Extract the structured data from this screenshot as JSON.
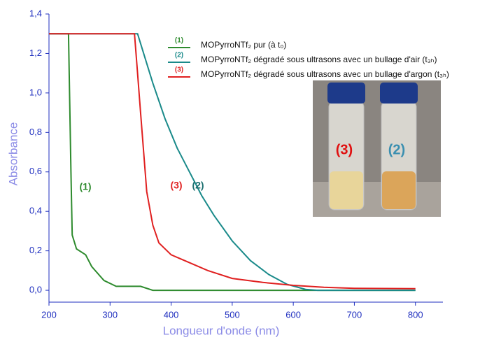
{
  "chart_data": {
    "type": "line",
    "x_label": "Longueur d'onde (nm)",
    "y_label": "Absorbance",
    "xlim": [
      200,
      845
    ],
    "ylim": [
      -0.06,
      1.4
    ],
    "xticks": [
      200,
      300,
      400,
      500,
      600,
      700,
      800
    ],
    "yticks": [
      {
        "value": 0,
        "label": "0,0"
      },
      {
        "value": 0.2,
        "label": "0,2"
      },
      {
        "value": 0.4,
        "label": "0,4"
      },
      {
        "value": 0.6,
        "label": "0,6"
      },
      {
        "value": 0.8,
        "label": "0,8"
      },
      {
        "value": 1.0,
        "label": "1,0"
      },
      {
        "value": 1.2,
        "label": "1,2"
      },
      {
        "value": 1.4,
        "label": "1,4"
      }
    ],
    "series": [
      {
        "tag": "(1)",
        "name": "MOPyrroNTf₂ pur (à t₀)",
        "color": "#2e8b2e",
        "x": [
          200,
          232,
          236,
          238,
          245,
          260,
          270,
          290,
          310,
          350,
          370,
          800
        ],
        "values": [
          1.3,
          1.3,
          0.6,
          0.28,
          0.21,
          0.18,
          0.12,
          0.05,
          0.02,
          0.02,
          0.0,
          0.0
        ]
      },
      {
        "tag": "(2)",
        "name": "MOPyrroNTf₂ dégradé sous  ultrasons avec un bullage d'air (t₃ₕ)",
        "color": "#1a8a8a",
        "x": [
          200,
          345,
          355,
          370,
          390,
          410,
          430,
          450,
          470,
          500,
          530,
          560,
          590,
          620,
          640,
          800
        ],
        "values": [
          1.3,
          1.3,
          1.2,
          1.05,
          0.87,
          0.72,
          0.6,
          0.48,
          0.38,
          0.25,
          0.15,
          0.08,
          0.03,
          0.005,
          0.0,
          0.0
        ]
      },
      {
        "tag": "(3)",
        "name": "MOPyrroNTf₂ dégradé sous  ultrasons avec un bullage d'argon (t₃ₕ)",
        "color": "#e02020",
        "x": [
          200,
          340,
          345,
          350,
          355,
          360,
          370,
          380,
          400,
          430,
          460,
          500,
          550,
          600,
          650,
          700,
          800
        ],
        "values": [
          1.3,
          1.3,
          1.1,
          0.9,
          0.7,
          0.5,
          0.33,
          0.24,
          0.18,
          0.14,
          0.1,
          0.06,
          0.04,
          0.025,
          0.015,
          0.01,
          0.008
        ]
      }
    ],
    "annotations": [
      {
        "text": "(1)",
        "color": "#2e8b2e"
      },
      {
        "text": "(3)",
        "color": "#e02020"
      },
      {
        "text": "(2)",
        "color": "#1a6e6e"
      }
    ],
    "inset_labels": [
      {
        "text": "(3)",
        "color": "#e01010"
      },
      {
        "text": "(2)",
        "color": "#3a8fb0"
      }
    ]
  }
}
